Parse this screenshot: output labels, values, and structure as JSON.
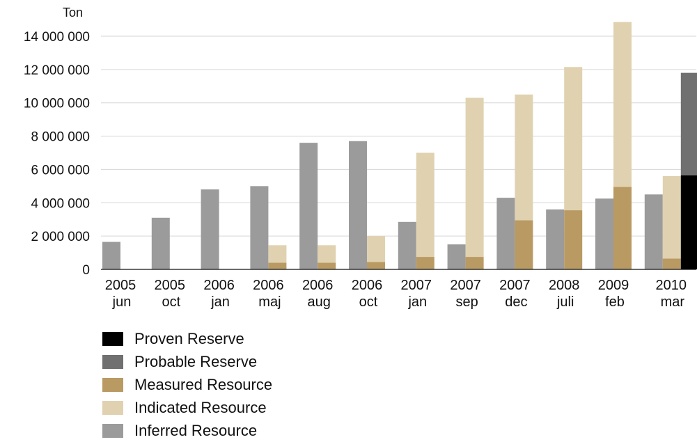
{
  "chart_data": {
    "type": "bar",
    "ylabel": "Ton",
    "ylim": [
      0,
      15000000
    ],
    "yticks": [
      0,
      2000000,
      4000000,
      6000000,
      8000000,
      10000000,
      12000000,
      14000000
    ],
    "ytick_labels": [
      "0",
      "2 000 000",
      "4 000 000",
      "6 000 000",
      "8 000 000",
      "10 000 000",
      "12 000 000",
      "14 000 000"
    ],
    "grid": true,
    "legend_position": "bottom-left",
    "categories": [
      {
        "year": "2005",
        "month": "jun"
      },
      {
        "year": "2005",
        "month": "oct"
      },
      {
        "year": "2006",
        "month": "jan"
      },
      {
        "year": "2006",
        "month": "maj"
      },
      {
        "year": "2006",
        "month": "aug"
      },
      {
        "year": "2006",
        "month": "oct"
      },
      {
        "year": "2007",
        "month": "jan"
      },
      {
        "year": "2007",
        "month": "sep"
      },
      {
        "year": "2007",
        "month": "dec"
      },
      {
        "year": "2008",
        "month": "juli"
      },
      {
        "year": "2009",
        "month": "feb"
      },
      {
        "year": "2010",
        "month": "mar"
      }
    ],
    "series": [
      {
        "name": "Inferred Resource",
        "color": "#9b9b9c",
        "values": [
          1650000,
          3100000,
          4800000,
          5000000,
          7600000,
          7700000,
          2850000,
          1500000,
          4300000,
          3600000,
          4250000,
          4500000
        ]
      },
      {
        "name": "Measured Resource",
        "color": "#b99a63",
        "values": [
          null,
          null,
          null,
          400000,
          400000,
          450000,
          750000,
          750000,
          2950000,
          3550000,
          4950000,
          650000
        ]
      },
      {
        "name": "Indicated Resource",
        "color": "#e0d2b0",
        "values": [
          null,
          null,
          null,
          1050000,
          1050000,
          1550000,
          6250000,
          9550000,
          7550000,
          8600000,
          9900000,
          4950000
        ]
      },
      {
        "name": "Proven Reserve",
        "color": "#000000",
        "values": [
          null,
          null,
          null,
          null,
          null,
          null,
          null,
          null,
          null,
          null,
          null,
          5650000
        ]
      },
      {
        "name": "Probable Reserve",
        "color": "#707070",
        "values": [
          null,
          null,
          null,
          null,
          null,
          null,
          null,
          null,
          null,
          null,
          null,
          6150000
        ]
      }
    ],
    "legend": [
      {
        "name": "Proven Reserve",
        "color": "#000000"
      },
      {
        "name": "Probable Reserve",
        "color": "#707070"
      },
      {
        "name": "Measured Resource",
        "color": "#b99a63"
      },
      {
        "name": "Indicated Resource",
        "color": "#e0d2b0"
      },
      {
        "name": "Inferred Resource",
        "color": "#9b9b9c"
      }
    ]
  }
}
